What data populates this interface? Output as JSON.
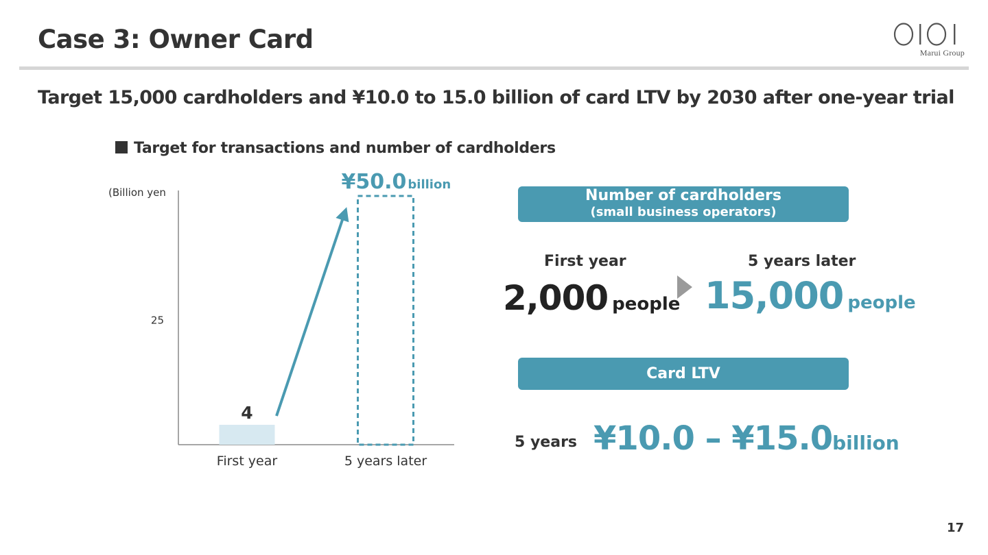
{
  "header": {
    "title": "Case 3: Owner Card",
    "logo_text": "Marui Group"
  },
  "subtitle": "Target 15,000 cardholders and ¥10.0 to 15.0 billion of card LTV by 2030 after one-year trial",
  "chart_heading": "Target for transactions and number of cardholders",
  "chart_data": {
    "type": "bar",
    "title": "Target for transactions and number of cardholders",
    "ylabel": "(Billion yen",
    "ylim": [
      0,
      50
    ],
    "yticks": [
      "25"
    ],
    "categories": [
      "First year",
      "5 years later"
    ],
    "values": [
      4,
      50
    ],
    "data_labels": [
      "4",
      "¥50.0"
    ],
    "target_unit": "billion",
    "colors": {
      "actual_fill": "#d7e9f1",
      "target_stroke": "#4a9ab1",
      "arrow": "#4a9ab1",
      "axis": "#888888"
    }
  },
  "cardholders": {
    "heading": "Number of cardholders",
    "subheading": "(small business operators)",
    "first_label": "First year",
    "first_value": "2,000",
    "first_unit": "people",
    "later_label": "5 years later",
    "later_value": "15,000",
    "later_unit": "people"
  },
  "ltv": {
    "heading": "Card LTV",
    "period": "5 years",
    "range": "¥10.0 – ¥15.0",
    "unit": "billion"
  },
  "page_number": "17",
  "colors": {
    "accent": "#4a9ab1",
    "text": "#333333",
    "rule": "#d6d6d6"
  }
}
